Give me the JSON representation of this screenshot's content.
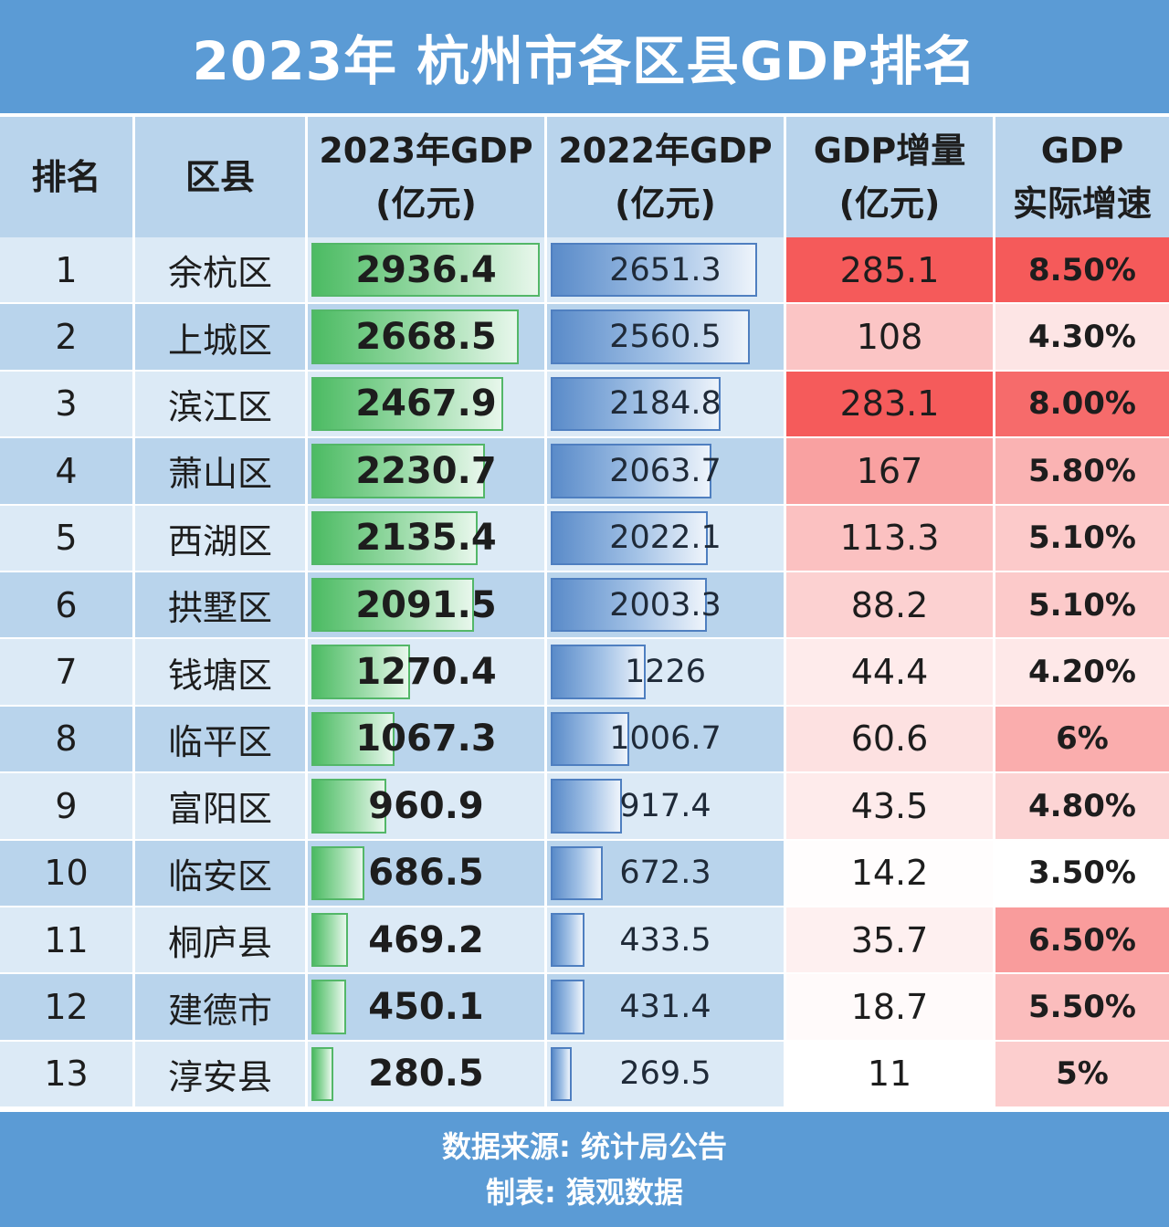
{
  "title": "2023年 杭州市各区县GDP排名",
  "footer": {
    "source": "数据来源: 统计局公告",
    "maker": "制表: 猿观数据"
  },
  "headers": {
    "rank": "排名",
    "district": "区县",
    "gdp2023": [
      "2023年GDP",
      "(亿元)"
    ],
    "gdp2022": [
      "2022年GDP",
      "(亿元)"
    ],
    "increase": [
      "GDP增量",
      "(亿元)"
    ],
    "growth": [
      "GDP",
      "实际增速"
    ]
  },
  "colors": {
    "header_blue": "#5b9bd5",
    "green_bar": "#4cbb63",
    "blue_bar": "#5a8bc9",
    "heat_high": "#f55a5a",
    "heat_low": "#ffffff"
  },
  "chart_data": {
    "type": "table",
    "columns": [
      "排名",
      "区县",
      "2023年GDP(亿元)",
      "2022年GDP(亿元)",
      "GDP增量(亿元)",
      "GDP实际增速"
    ],
    "rows": [
      {
        "rank": "1",
        "district": "余杭区",
        "gdp2023": "2936.4",
        "gdp2022": "2651.3",
        "increase": "285.1",
        "growth": "8.50%"
      },
      {
        "rank": "2",
        "district": "上城区",
        "gdp2023": "2668.5",
        "gdp2022": "2560.5",
        "increase": "108",
        "growth": "4.30%"
      },
      {
        "rank": "3",
        "district": "滨江区",
        "gdp2023": "2467.9",
        "gdp2022": "2184.8",
        "increase": "283.1",
        "growth": "8.00%"
      },
      {
        "rank": "4",
        "district": "萧山区",
        "gdp2023": "2230.7",
        "gdp2022": "2063.7",
        "increase": "167",
        "growth": "5.80%"
      },
      {
        "rank": "5",
        "district": "西湖区",
        "gdp2023": "2135.4",
        "gdp2022": "2022.1",
        "increase": "113.3",
        "growth": "5.10%"
      },
      {
        "rank": "6",
        "district": "拱墅区",
        "gdp2023": "2091.5",
        "gdp2022": "2003.3",
        "increase": "88.2",
        "growth": "5.10%"
      },
      {
        "rank": "7",
        "district": "钱塘区",
        "gdp2023": "1270.4",
        "gdp2022": "1226",
        "increase": "44.4",
        "growth": "4.20%"
      },
      {
        "rank": "8",
        "district": "临平区",
        "gdp2023": "1067.3",
        "gdp2022": "1006.7",
        "increase": "60.6",
        "growth": "6%"
      },
      {
        "rank": "9",
        "district": "富阳区",
        "gdp2023": "960.9",
        "gdp2022": "917.4",
        "increase": "43.5",
        "growth": "4.80%"
      },
      {
        "rank": "10",
        "district": "临安区",
        "gdp2023": "686.5",
        "gdp2022": "672.3",
        "increase": "14.2",
        "growth": "3.50%"
      },
      {
        "rank": "11",
        "district": "桐庐县",
        "gdp2023": "469.2",
        "gdp2022": "433.5",
        "increase": "35.7",
        "growth": "6.50%"
      },
      {
        "rank": "12",
        "district": "建德市",
        "gdp2023": "450.1",
        "gdp2022": "431.4",
        "increase": "18.7",
        "growth": "5.50%"
      },
      {
        "rank": "13",
        "district": "淳安县",
        "gdp2023": "280.5",
        "gdp2022": "269.5",
        "increase": "11",
        "growth": "5%"
      }
    ]
  }
}
